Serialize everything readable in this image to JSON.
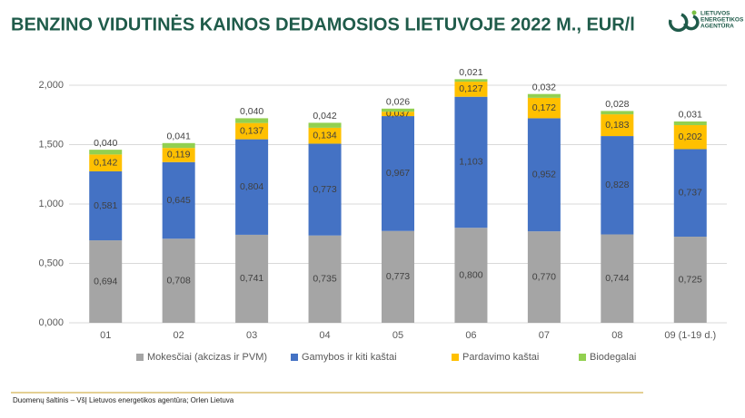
{
  "header": {
    "title": "BENZINO VIDUTINĖS KAINOS DEDAMOSIOS LIETUVOJE 2022 M., EUR/l",
    "logo": [
      "LIETUVOS",
      "ENERGETIKOS",
      "AGENTŪRA"
    ]
  },
  "chart_data": {
    "type": "stacked_bar",
    "categories": [
      "01",
      "02",
      "03",
      "04",
      "05",
      "06",
      "07",
      "08",
      "09 (1-19 d.)"
    ],
    "series": [
      {
        "name": "Mokesčiai (akcizas ir PVM)",
        "color": "#a5a5a5",
        "values": [
          0.694,
          0.708,
          0.741,
          0.735,
          0.773,
          0.8,
          0.77,
          0.744,
          0.725
        ],
        "value_labels": [
          "0,694",
          "0,708",
          "0,741",
          "0,735",
          "0,773",
          "0,800",
          "0,770",
          "0,744",
          "0,725"
        ]
      },
      {
        "name": "Gamybos ir kiti kaštai",
        "color": "#4472c4",
        "values": [
          0.581,
          0.645,
          0.804,
          0.773,
          0.967,
          1.103,
          0.952,
          0.828,
          0.737
        ],
        "value_labels": [
          "0,581",
          "0,645",
          "0,804",
          "0,773",
          "0,967",
          "1,103",
          "0,952",
          "0,828",
          "0,737"
        ]
      },
      {
        "name": "Pardavimo kaštai",
        "color": "#ffc000",
        "values": [
          0.142,
          0.119,
          0.137,
          0.134,
          0.037,
          0.127,
          0.172,
          0.183,
          0.202
        ],
        "value_labels": [
          "0,142",
          "0,119",
          "0,137",
          "0,134",
          "0,037",
          "0,127",
          "0,172",
          "0,183",
          "0,202"
        ]
      },
      {
        "name": "Biodegalai",
        "color": "#92d050",
        "values": [
          0.04,
          0.041,
          0.04,
          0.042,
          0.026,
          0.021,
          0.032,
          0.028,
          0.031
        ],
        "value_labels": [
          "0,040",
          "0,041",
          "0,040",
          "0,042",
          "0,026",
          "0,021",
          "0,032",
          "0,028",
          "0,031"
        ]
      }
    ],
    "ylim": [
      0,
      2
    ],
    "yticks": [
      {
        "value": 0,
        "label": "0,000"
      },
      {
        "value": 0.5,
        "label": "0,500"
      },
      {
        "value": 1,
        "label": "1,000"
      },
      {
        "value": 1.5,
        "label": "1,500"
      },
      {
        "value": 2,
        "label": "2,000"
      }
    ],
    "grid": true
  },
  "footer": {
    "source": "Duomenų šaltinis – VšĮ Lietuvos energetikos agentūra; Orlen Lietuva"
  }
}
